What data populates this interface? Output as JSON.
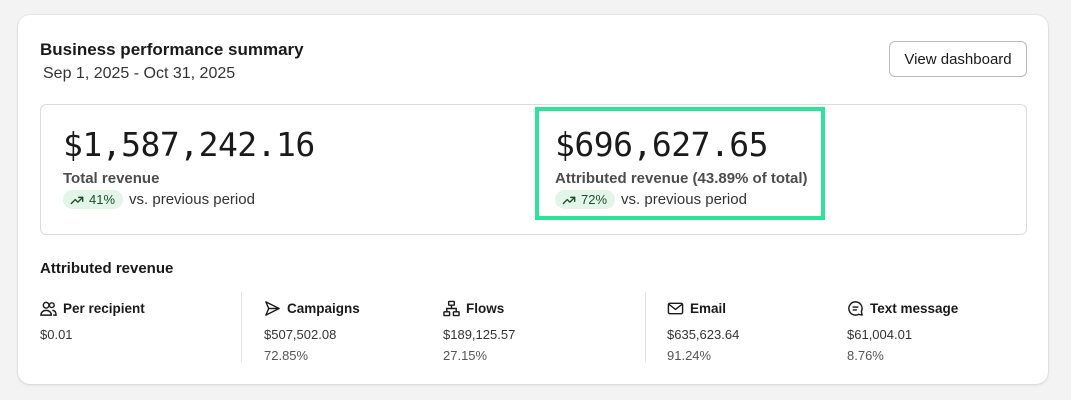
{
  "header": {
    "title": "Business performance summary",
    "date_range": "Sep 1, 2025 - Oct 31, 2025",
    "view_button": "View dashboard"
  },
  "metrics": {
    "total": {
      "amount": "$1,587,242.16",
      "label": "Total revenue",
      "change": "41%",
      "change_suffix": "vs. previous period"
    },
    "attributed": {
      "amount": "$696,627.65",
      "label": "Attributed revenue (43.89% of total)",
      "change": "72%",
      "change_suffix": "vs. previous period",
      "highlight_color": "#2de39a"
    }
  },
  "attributed_section": {
    "title": "Attributed revenue",
    "stats": [
      {
        "icon": "users-icon",
        "label": "Per recipient",
        "value": "$0.01",
        "share": ""
      },
      {
        "icon": "send-icon",
        "label": "Campaigns",
        "value": "$507,502.08",
        "share": "72.85%"
      },
      {
        "icon": "flow-icon",
        "label": "Flows",
        "value": "$189,125.57",
        "share": "27.15%"
      },
      {
        "icon": "mail-icon",
        "label": "Email",
        "value": "$635,623.64",
        "share": "91.24%"
      },
      {
        "icon": "message-icon",
        "label": "Text message",
        "value": "$61,004.01",
        "share": "8.76%"
      }
    ]
  },
  "colors": {
    "positive_pill_bg": "#e2f5e8",
    "positive_pill_text": "#1d4d2c"
  }
}
